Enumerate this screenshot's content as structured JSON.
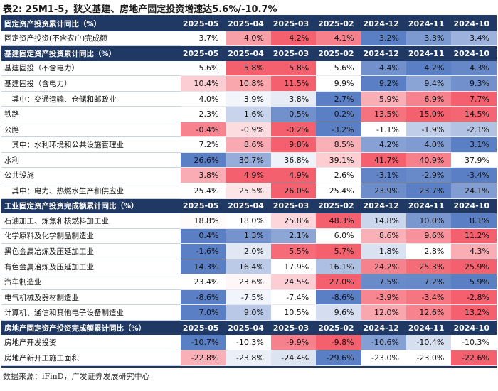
{
  "title": "表2: 25M1-5，狭义基建、房地产固定投资增速达5.6%/-10.7%",
  "sections": [
    {
      "header": "固定资产投资累计同比（%）",
      "columns": [
        "2025-05",
        "2025-04",
        "2025-03",
        "2025-02",
        "2024-12",
        "2024-11",
        "2024-10"
      ],
      "rows": [
        {
          "label": "固定资产投资(不含农户)完成额",
          "values": [
            "3.7%",
            "4.0%",
            "4.2%",
            "4.1%",
            "3.2%",
            "3.3%",
            "3.4%"
          ]
        }
      ]
    },
    {
      "header": "基建固定资产投资累计同比（%）",
      "columns": [
        "2025-05",
        "2025-04",
        "2025-03",
        "2025-02",
        "2024-12",
        "2024-11",
        "2024-10"
      ],
      "rows": [
        {
          "label": "基建固投（不含电力）",
          "values": [
            "5.6%",
            "5.8%",
            "5.8%",
            "5.6%",
            "4.4%",
            "4.2%",
            "4.3%"
          ]
        },
        {
          "label": "基建固投（含电力）",
          "values": [
            "10.4%",
            "10.8%",
            "11.5%",
            "9.9%",
            "9.2%",
            "9.4%",
            "9.3%"
          ]
        },
        {
          "label": "　其中：交通运输、仓储和邮政业",
          "values": [
            "4.0%",
            "3.9%",
            "3.8%",
            "2.7%",
            "5.9%",
            "6.9%",
            "7.7%"
          ]
        },
        {
          "label": "铁路",
          "values": [
            "2.3%",
            "1.6%",
            "0.5%",
            "0.2%",
            "13.5%",
            "15.0%",
            "14.5%"
          ]
        },
        {
          "label": "公路",
          "values": [
            "-0.4%",
            "-0.9%",
            "-0.2%",
            "-3.2%",
            "-1.1%",
            "-1.9%",
            "-2.1%"
          ]
        },
        {
          "label": "　其中：水利环境和公共设施管理业",
          "values": [
            "7.2%",
            "8.6%",
            "9.8%",
            "8.5%",
            "4.2%",
            "4.0%",
            "3.1%"
          ]
        },
        {
          "label": "水利",
          "values": [
            "26.6%",
            "30.7%",
            "36.8%",
            "39.1%",
            "41.7%",
            "40.9%",
            "37.9%"
          ]
        },
        {
          "label": "公共设施",
          "values": [
            "3.8%",
            "4.9%",
            "4.9%",
            "2.6%",
            "-3.1%",
            "-2.9%",
            "-3.4%"
          ]
        },
        {
          "label": "　其中：电力、热燃水生产和供应业",
          "values": [
            "25.4%",
            "25.5%",
            "26.0%",
            "25.4%",
            "23.9%",
            "23.7%",
            "24.1%"
          ]
        }
      ]
    },
    {
      "header": "工业固定资产投资完成额累计同比（%）",
      "columns": [
        "2025-05",
        "2025-04",
        "2025-03",
        "2025-02",
        "2024-12",
        "2024-11",
        "2024-10"
      ],
      "rows": [
        {
          "label": "石油加工、炼焦和核燃料加工业",
          "values": [
            "18.8%",
            "18.0%",
            "25.8%",
            "48.3%",
            "14.8%",
            "10.0%",
            "8.1%"
          ]
        },
        {
          "label": "化学原料及化学制品制造业",
          "values": [
            "0.4%",
            "1.3%",
            "2.1%",
            "6.0%",
            "8.6%",
            "9.6%",
            "11.2%"
          ]
        },
        {
          "label": "黑色金属冶炼及压延加工业",
          "values": [
            "-1.6%",
            "2.0%",
            "5.5%",
            "5.7%",
            "1.8%",
            "2.8%",
            "4.3%"
          ]
        },
        {
          "label": "有色金属冶炼及压延加工业",
          "values": [
            "14.3%",
            "16.4%",
            "17.9%",
            "16.1%",
            "24.2%",
            "25.3%",
            "25.9%"
          ]
        },
        {
          "label": "汽车制造业",
          "values": [
            "23.4%",
            "23.6%",
            "24.5%",
            "27.0%",
            "7.5%",
            "7.2%",
            "5.9%"
          ]
        },
        {
          "label": "电气机械及器材制造业",
          "values": [
            "-8.6%",
            "-7.5%",
            "-7.4%",
            "-8.6%",
            "-3.9%",
            "-3.4%",
            "-2.8%"
          ]
        },
        {
          "label": "计算机、通信和其他电子设备制造业",
          "values": [
            "7.0%",
            "9.0%",
            "10.5%",
            "9.6%",
            "12.0%",
            "12.6%",
            "13.2%"
          ]
        }
      ]
    },
    {
      "header": "房地产固定资产投资完成额累计同比（%）",
      "columns": [
        "2025-05",
        "2025-04",
        "2025-03",
        "2025-02",
        "2024-12",
        "2024-11",
        "2024-10"
      ],
      "rows": [
        {
          "label": "房地产开发投资",
          "values": [
            "-10.7%",
            "-10.3%",
            "-9.9%",
            "-9.8%",
            "-10.6%",
            "-10.4%",
            "-10.3%"
          ]
        },
        {
          "label": "房地产新开工施工面积",
          "values": [
            "-22.8%",
            "-23.8%",
            "-24.4%",
            "-29.6%",
            "-23.0%",
            "-23.0%",
            "-22.6%"
          ]
        }
      ]
    }
  ],
  "source": "数据来源：iFinD，广发证券发展研究中心",
  "colors": {
    "header_bg": "#1f3864",
    "header_text": "#ffffff",
    "high": "#f4606e",
    "mid": "#ffffff",
    "low": "#5b7fc4"
  }
}
